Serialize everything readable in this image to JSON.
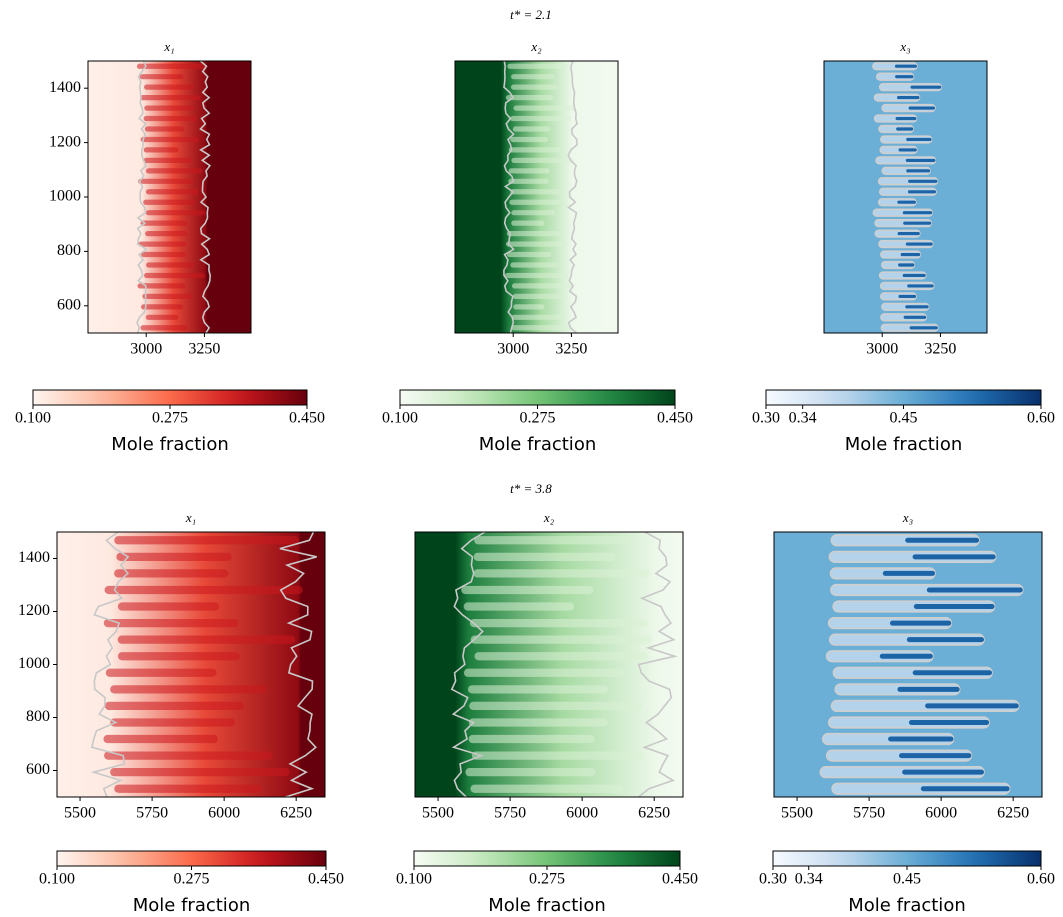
{
  "row_titles": [
    "t* = 2.1",
    "t* = 3.8"
  ],
  "chart_data": [
    {
      "type": "heatmap",
      "title": "x₁",
      "colormap": "Reds",
      "xlim": [
        2750,
        3450
      ],
      "xticks": [
        3000,
        3250
      ],
      "ylim": [
        500,
        1500
      ],
      "yticks": [
        600,
        800,
        1000,
        1200,
        1400
      ],
      "colorbar": {
        "label": "Mole fraction",
        "lim": [
          0.1,
          0.45
        ],
        "ticks": [
          {
            "value": 0.1,
            "label": "0.100"
          },
          {
            "value": 0.275,
            "label": "0.275"
          },
          {
            "value": 0.45,
            "label": "0.450"
          }
        ]
      }
    },
    {
      "type": "heatmap",
      "title": "x₂",
      "colormap": "Greens",
      "xlim": [
        2750,
        3450
      ],
      "xticks": [
        3000,
        3250
      ],
      "ylim": [
        500,
        1500
      ],
      "colorbar": {
        "label": "Mole fraction",
        "lim": [
          0.1,
          0.45
        ],
        "ticks": [
          {
            "value": 0.1,
            "label": "0.100"
          },
          {
            "value": 0.275,
            "label": "0.275"
          },
          {
            "value": 0.45,
            "label": "0.450"
          }
        ]
      }
    },
    {
      "type": "heatmap",
      "title": "x₃",
      "colormap": "Blues",
      "xlim": [
        2750,
        3450
      ],
      "xticks": [
        3000,
        3250
      ],
      "ylim": [
        500,
        1500
      ],
      "colorbar": {
        "label": "Mole fraction",
        "lim": [
          0.3,
          0.6
        ],
        "ticks": [
          {
            "value": 0.3,
            "label": "0.30"
          },
          {
            "value": 0.34,
            "label": "0.34"
          },
          {
            "value": 0.45,
            "label": "0.45"
          },
          {
            "value": 0.6,
            "label": "0.60"
          }
        ]
      }
    },
    {
      "type": "heatmap",
      "title": "x₁",
      "colormap": "Reds",
      "xlim": [
        5420,
        6350
      ],
      "xticks": [
        5500,
        5750,
        6000,
        6250
      ],
      "ylim": [
        500,
        1500
      ],
      "yticks": [
        600,
        800,
        1000,
        1200,
        1400
      ],
      "colorbar": {
        "label": "Mole fraction",
        "lim": [
          0.1,
          0.45
        ],
        "ticks": [
          {
            "value": 0.1,
            "label": "0.100"
          },
          {
            "value": 0.275,
            "label": "0.275"
          },
          {
            "value": 0.45,
            "label": "0.450"
          }
        ]
      }
    },
    {
      "type": "heatmap",
      "title": "x₂",
      "colormap": "Greens",
      "xlim": [
        5420,
        6350
      ],
      "xticks": [
        5500,
        5750,
        6000,
        6250
      ],
      "ylim": [
        500,
        1500
      ],
      "colorbar": {
        "label": "Mole fraction",
        "lim": [
          0.1,
          0.45
        ],
        "ticks": [
          {
            "value": 0.1,
            "label": "0.100"
          },
          {
            "value": 0.275,
            "label": "0.275"
          },
          {
            "value": 0.45,
            "label": "0.450"
          }
        ]
      }
    },
    {
      "type": "heatmap",
      "title": "x₃",
      "colormap": "Blues",
      "xlim": [
        5420,
        6350
      ],
      "xticks": [
        5500,
        5750,
        6000,
        6250
      ],
      "ylim": [
        500,
        1500
      ],
      "colorbar": {
        "label": "Mole fraction",
        "lim": [
          0.3,
          0.6
        ],
        "ticks": [
          {
            "value": 0.3,
            "label": "0.30"
          },
          {
            "value": 0.34,
            "label": "0.34"
          },
          {
            "value": 0.45,
            "label": "0.45"
          },
          {
            "value": 0.6,
            "label": "0.60"
          }
        ]
      }
    }
  ]
}
